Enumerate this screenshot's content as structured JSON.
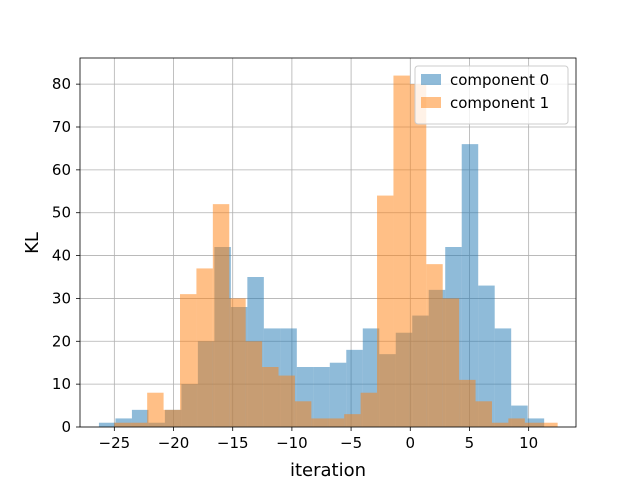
{
  "chart_data": {
    "type": "histogram",
    "xlabel": "iteration",
    "ylabel": "KL",
    "xlim": [
      -27.9,
      14.0
    ],
    "ylim": [
      0,
      86.1
    ],
    "xticks": [
      -25,
      -20,
      -15,
      -10,
      -5,
      0,
      5,
      10
    ],
    "yticks": [
      0,
      10,
      20,
      30,
      40,
      50,
      60,
      70,
      80
    ],
    "grid": true,
    "legend_position": "top-right",
    "series": [
      {
        "name": "component 0",
        "color": "#1f77b4",
        "alpha": 0.5,
        "bin_start": -26.3,
        "bin_width": 1.393,
        "counts": [
          1,
          2,
          4,
          1,
          4,
          10,
          20,
          42,
          28,
          35,
          23,
          23,
          14,
          14,
          15,
          18,
          23,
          17,
          22,
          26,
          32,
          42,
          66,
          33,
          23,
          5,
          2,
          0,
          0,
          0,
          0
        ]
      },
      {
        "name": "component 1",
        "color": "#ff7f0e",
        "alpha": 0.5,
        "bin_start": -25.0,
        "bin_width": 1.387,
        "counts": [
          1,
          1,
          8,
          4,
          31,
          37,
          52,
          30,
          20,
          14,
          12,
          6,
          2,
          2,
          3,
          8,
          54,
          82,
          80,
          38,
          30,
          11,
          6,
          1,
          2,
          1,
          1
        ]
      }
    ]
  }
}
